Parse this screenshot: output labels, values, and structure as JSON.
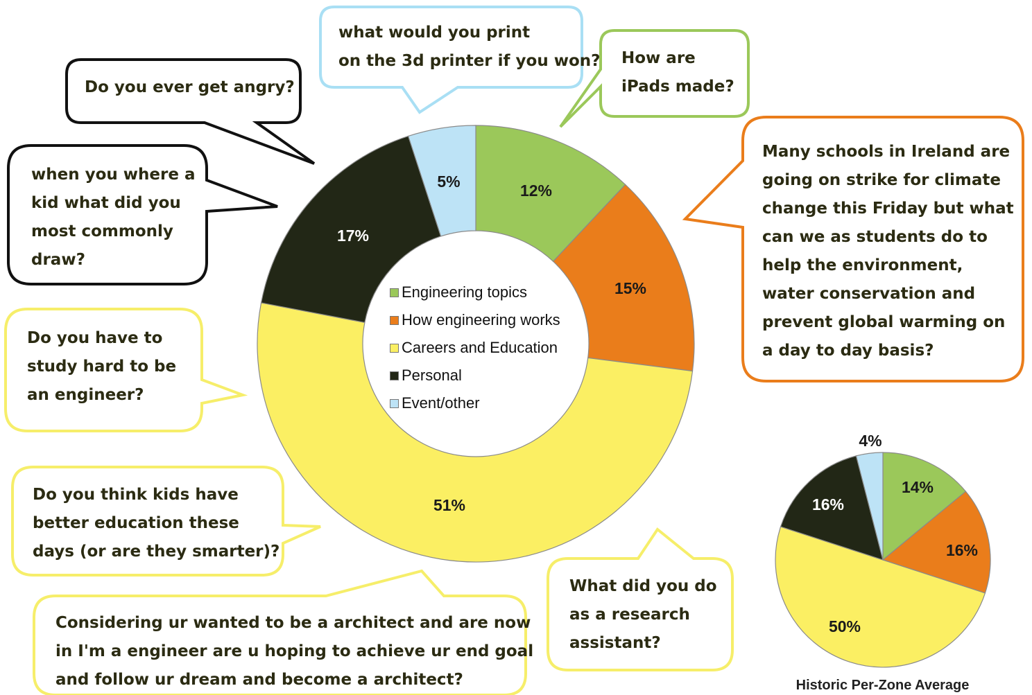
{
  "chart_data": [
    {
      "type": "donut",
      "categories": [
        "Engineering topics",
        "How engineering works",
        "Careers and Education",
        "Personal",
        "Event/other"
      ],
      "values": [
        12,
        15,
        51,
        17,
        5
      ],
      "labels": [
        "12%",
        "15%",
        "51%",
        "17%",
        "5%"
      ],
      "colors": [
        "#9bc85a",
        "#ea7d1b",
        "#fbef63",
        "#222716",
        "#bde3f6"
      ],
      "legend_position": "center"
    },
    {
      "type": "pie",
      "title": "Historic Per-Zone Average",
      "categories": [
        "Engineering topics",
        "How engineering works",
        "Careers and Education",
        "Personal",
        "Event/other"
      ],
      "values": [
        14,
        16,
        50,
        16,
        4
      ],
      "labels": [
        "14%",
        "16%",
        "50%",
        "16%",
        "4%"
      ],
      "colors": [
        "#9bc85a",
        "#ea7d1b",
        "#fbef63",
        "#222716",
        "#bde3f6"
      ]
    }
  ],
  "questions": {
    "angry": "Do you ever get angry?",
    "printer": "what would you print\non the 3d printer if you won?",
    "ipads": "How are\niPads made?",
    "draw": "when you where a\nkid what did you\nmost commonly\ndraw?",
    "strike": "Many schools in Ireland are\ngoing on strike for climate\nchange this Friday but what\ncan we as students do to\nhelp the environment,\nwater conservation and\nprevent global warming on\na day to day basis?",
    "study": "Do you have to\nstudy hard to be\nan engineer?",
    "kids": "Do you think kids have\nbetter education these\ndays (or are they smarter)?",
    "architect": "Considering ur wanted to be a architect and are now\nin I'm a engineer are u hoping to achieve ur end goal\nand follow ur dream and become a architect?",
    "research": "What did you do\nas a research\nassistant?"
  },
  "colors": {
    "green": "#9bc85a",
    "orange": "#ea7d1b",
    "yellow": "#fbef63",
    "dark": "#222716",
    "blue": "#bde3f6",
    "yellow_border": "#f6ee6a",
    "blue_border": "#a9dff4"
  }
}
